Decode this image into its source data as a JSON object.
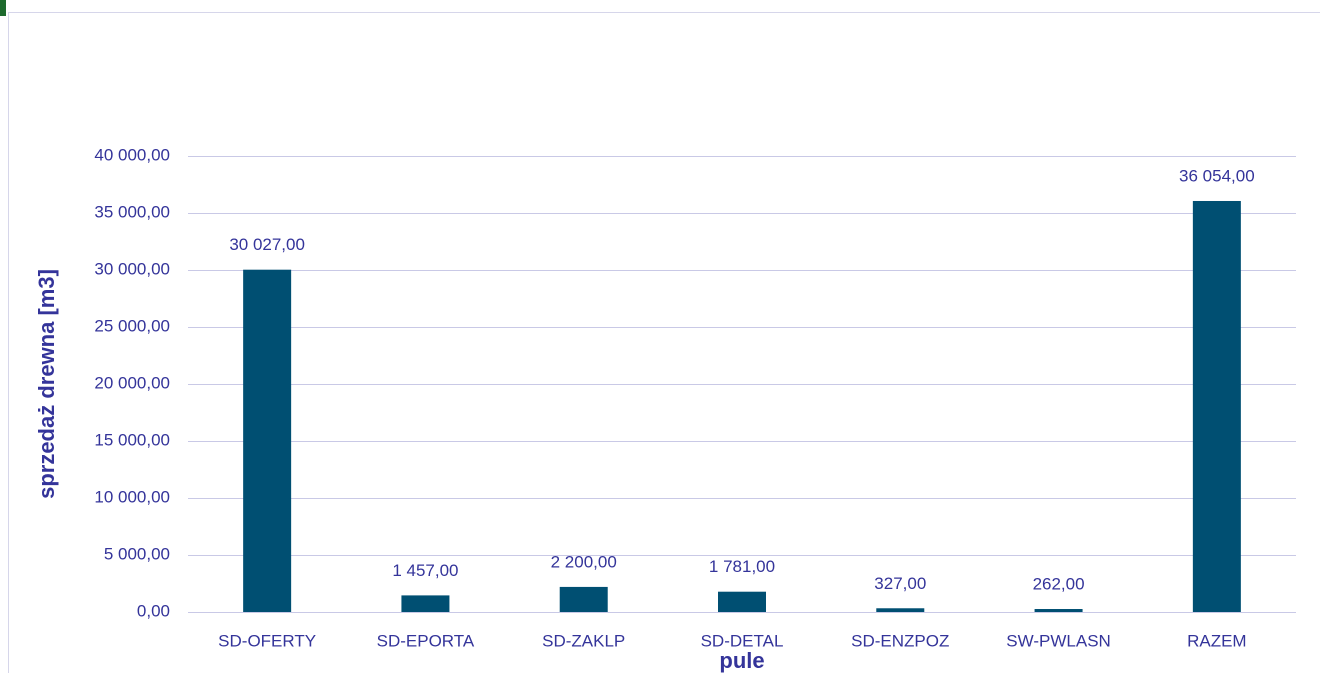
{
  "chart_data": {
    "type": "bar",
    "categories": [
      "SD-OFERTY",
      "SD-EPORTA",
      "SD-ZAKLP",
      "SD-DETAL",
      "SD-ENZPOZ",
      "SW-PWLASN",
      "RAZEM"
    ],
    "values": [
      30027,
      1457,
      2200,
      1781,
      327,
      262,
      36054
    ],
    "value_labels": [
      "30 027,00",
      "1 457,00",
      "2 200,00",
      "1 781,00",
      "327,00",
      "262,00",
      "36 054,00"
    ],
    "color": "#004f72",
    "xlabel": "pule",
    "ylabel": "sprzedaż drewna [m3]",
    "ylim": [
      0,
      40000
    ],
    "yticks": [
      {
        "value": 0,
        "label": "0,00"
      },
      {
        "value": 5000,
        "label": "5 000,00"
      },
      {
        "value": 10000,
        "label": "10 000,00"
      },
      {
        "value": 15000,
        "label": "15 000,00"
      },
      {
        "value": 20000,
        "label": "20 000,00"
      },
      {
        "value": 25000,
        "label": "25 000,00"
      },
      {
        "value": 30000,
        "label": "30 000,00"
      },
      {
        "value": 35000,
        "label": "35 000,00"
      },
      {
        "value": 40000,
        "label": "40 000,00"
      }
    ],
    "grid": true
  }
}
